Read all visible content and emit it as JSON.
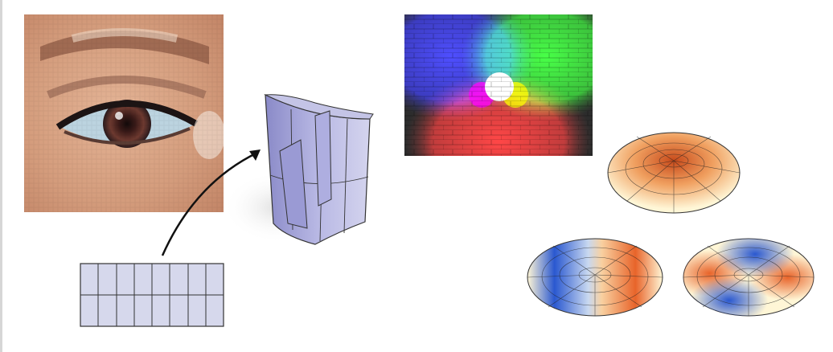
{
  "slide": {
    "background": "#ffffff",
    "rule_color": "#d6d6d6"
  },
  "figures": {
    "eye_photo": {
      "icon": "pixelated-eye-image"
    },
    "surface_mapping": {
      "icon": "grid-to-surface-mapping-diagram",
      "grid": {
        "columns": 8,
        "rows": 2,
        "fill": "#d6d8ec",
        "stroke": "#333333"
      },
      "surface_color": "#8c8ccc",
      "arrow_color": "#111111"
    },
    "rgb_light_mixing": {
      "icon": "rgb-spotlights-on-brick-wall-image",
      "colors": [
        "#0000ff",
        "#00ff00",
        "#ff0000",
        "#ffffff",
        "#ffff00",
        "#ff00ff"
      ]
    },
    "spherical_harmonics": {
      "icon": "spherical-harmonic-plots",
      "warm": "#e8642a",
      "cool": "#2a58d0",
      "pale": "#fff6d6",
      "plots": [
        {
          "name": "harmonic-top",
          "pattern": "center"
        },
        {
          "name": "harmonic-left",
          "pattern": "bipolar"
        },
        {
          "name": "harmonic-right",
          "pattern": "quadrupolar"
        }
      ]
    }
  }
}
